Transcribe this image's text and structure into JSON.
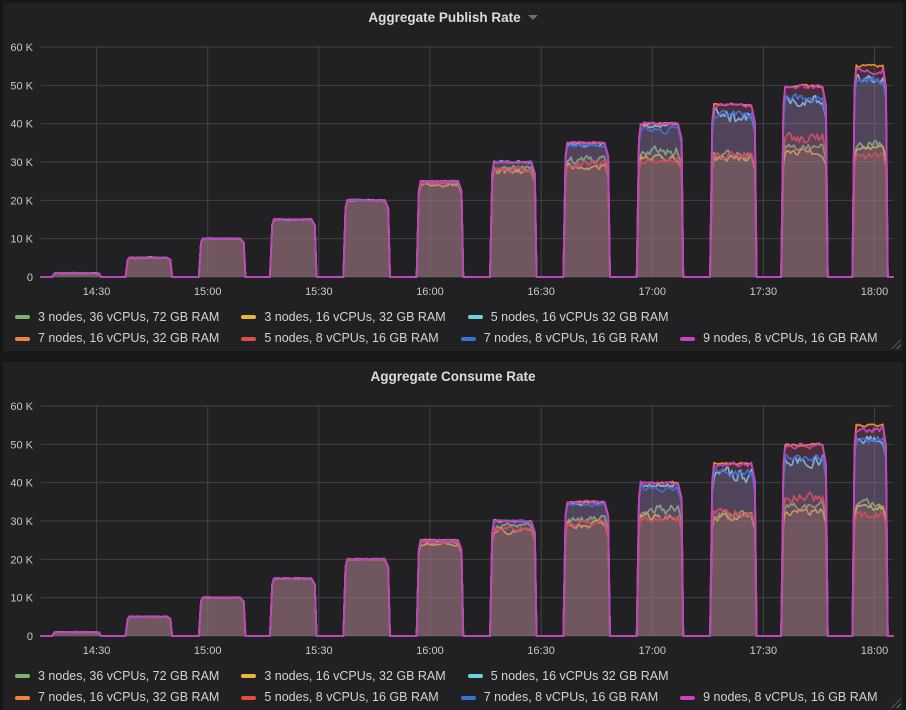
{
  "theme": {
    "page_bg": "#161719",
    "panel_bg": "#212124",
    "grid_color": "#404348",
    "tick_text_color": "#c7c9cb",
    "legend_text_color": "#d0d2d4",
    "title_text_color": "#dcdde0",
    "fill_opacity": 0.12
  },
  "chart_data": [
    {
      "type": "area",
      "title": "Aggregate Publish Rate",
      "has_menu_caret": true,
      "seed": 7,
      "unit": "messages/s (thousands)",
      "ylim_k": [
        0,
        60
      ],
      "y_ticks": [
        {
          "label": "0",
          "v": 0
        },
        {
          "label": "10 K",
          "v": 10
        },
        {
          "label": "20 K",
          "v": 20
        },
        {
          "label": "30 K",
          "v": 30
        },
        {
          "label": "40 K",
          "v": 40
        },
        {
          "label": "50 K",
          "v": 50
        },
        {
          "label": "60 K",
          "v": 60
        }
      ],
      "x_range": [
        "14:15",
        "18:05"
      ],
      "x_domain_hours": [
        14.25,
        18.0833
      ],
      "x_ticks": [
        {
          "label": "14:30",
          "t": 14.5
        },
        {
          "label": "15:00",
          "t": 15.0
        },
        {
          "label": "15:30",
          "t": 15.5
        },
        {
          "label": "16:00",
          "t": 16.0
        },
        {
          "label": "16:30",
          "t": 16.5
        },
        {
          "label": "17:00",
          "t": 17.0
        },
        {
          "label": "17:30",
          "t": 17.5
        },
        {
          "label": "18:00",
          "t": 18.0
        }
      ],
      "step_targets_k": [
        1,
        5,
        10,
        15,
        20,
        25,
        30,
        35,
        40,
        45,
        50,
        55
      ],
      "step_start_hours": [
        14.3,
        14.63,
        14.96,
        15.28,
        15.61,
        15.94,
        16.27,
        16.6,
        16.93,
        17.26,
        17.58,
        17.9
      ],
      "step_end_hours": [
        14.52,
        14.84,
        15.17,
        15.49,
        15.82,
        16.15,
        16.48,
        16.81,
        17.14,
        17.47,
        17.79,
        18.06
      ],
      "series": [
        {
          "name": "3 nodes, 36 vCPUs, 72 GB RAM",
          "color": "#7EB26D",
          "values_k": [
            1,
            5,
            10,
            15,
            20,
            24.5,
            28.5,
            30.5,
            33,
            32,
            34,
            34.5
          ],
          "noise_k": [
            0.15,
            0.2,
            0.2,
            0.2,
            0.3,
            0.5,
            1.0,
            1.5,
            2.0,
            1.5,
            1.2,
            1.5
          ]
        },
        {
          "name": "3 nodes, 16 vCPUs, 32 GB RAM",
          "color": "#EAB839",
          "values_k": [
            1,
            5,
            10,
            15,
            20,
            24,
            27.5,
            29,
            31,
            31,
            32.5,
            33.5
          ],
          "noise_k": [
            0.15,
            0.2,
            0.2,
            0.2,
            0.3,
            0.6,
            1.0,
            1.3,
            1.2,
            1.2,
            1.2,
            1.0
          ]
        },
        {
          "name": "5 nodes, 16 vCPUs 32 GB RAM",
          "color": "#6ED0E0",
          "values_k": [
            1,
            5,
            10,
            15,
            20,
            25,
            30,
            34.5,
            39.5,
            42,
            46,
            51.5
          ],
          "noise_k": [
            0.15,
            0.15,
            0.2,
            0.2,
            0.25,
            0.3,
            0.4,
            0.7,
            0.8,
            2.5,
            2.0,
            1.5
          ]
        },
        {
          "name": "7 nodes, 16 vCPUs, 32 GB RAM",
          "color": "#EF843C",
          "values_k": [
            1,
            5,
            10,
            15,
            20,
            25,
            30,
            35,
            40,
            45,
            49.8,
            55
          ],
          "noise_k": [
            0.1,
            0.15,
            0.15,
            0.2,
            0.2,
            0.25,
            0.3,
            0.3,
            0.35,
            0.4,
            0.5,
            0.5
          ]
        },
        {
          "name": "5 nodes, 8 vCPUs, 16 GB RAM",
          "color": "#E24D42",
          "values_k": [
            1,
            5,
            10,
            15,
            20,
            24.5,
            28,
            29.5,
            30.5,
            32,
            36,
            31.5
          ],
          "noise_k": [
            0.15,
            0.2,
            0.2,
            0.25,
            0.4,
            0.5,
            1.0,
            1.2,
            1.2,
            1.5,
            2.0,
            1.5
          ]
        },
        {
          "name": "7 nodes, 8 vCPUs, 16 GB RAM",
          "color": "#3274D9",
          "values_k": [
            1,
            5,
            10,
            15,
            20,
            25,
            30,
            34.2,
            38.5,
            42.5,
            46.5,
            51.5
          ],
          "noise_k": [
            0.15,
            0.15,
            0.2,
            0.2,
            0.25,
            0.3,
            0.35,
            0.6,
            1.2,
            1.5,
            1.5,
            1.5
          ]
        },
        {
          "name": "9 nodes, 8 vCPUs, 16 GB RAM",
          "color": "#C843BC",
          "values_k": [
            1,
            5,
            10,
            15,
            20,
            25,
            30,
            35,
            40,
            44.8,
            49.5,
            54
          ],
          "noise_k": [
            0.15,
            0.15,
            0.2,
            0.2,
            0.25,
            0.3,
            0.3,
            0.4,
            0.6,
            0.8,
            1.0,
            1.2
          ]
        }
      ]
    },
    {
      "type": "area",
      "title": "Aggregate Consume Rate",
      "has_menu_caret": false,
      "seed": 13,
      "unit": "messages/s (thousands)",
      "ylim_k": [
        0,
        60
      ],
      "y_ticks": [
        {
          "label": "0",
          "v": 0
        },
        {
          "label": "10 K",
          "v": 10
        },
        {
          "label": "20 K",
          "v": 20
        },
        {
          "label": "30 K",
          "v": 30
        },
        {
          "label": "40 K",
          "v": 40
        },
        {
          "label": "50 K",
          "v": 50
        },
        {
          "label": "60 K",
          "v": 60
        }
      ],
      "x_range": [
        "14:15",
        "18:05"
      ],
      "x_domain_hours": [
        14.25,
        18.0833
      ],
      "x_ticks": [
        {
          "label": "14:30",
          "t": 14.5
        },
        {
          "label": "15:00",
          "t": 15.0
        },
        {
          "label": "15:30",
          "t": 15.5
        },
        {
          "label": "16:00",
          "t": 16.0
        },
        {
          "label": "16:30",
          "t": 16.5
        },
        {
          "label": "17:00",
          "t": 17.0
        },
        {
          "label": "17:30",
          "t": 17.5
        },
        {
          "label": "18:00",
          "t": 18.0
        }
      ],
      "step_targets_k": [
        1,
        5,
        10,
        15,
        20,
        25,
        30,
        35,
        40,
        45,
        50,
        55
      ],
      "step_start_hours": [
        14.3,
        14.63,
        14.96,
        15.28,
        15.61,
        15.94,
        16.27,
        16.6,
        16.93,
        17.26,
        17.58,
        17.9
      ],
      "step_end_hours": [
        14.52,
        14.84,
        15.17,
        15.49,
        15.82,
        16.15,
        16.48,
        16.81,
        17.14,
        17.47,
        17.79,
        18.06
      ],
      "series": [
        {
          "name": "3 nodes, 36 vCPUs, 72 GB RAM",
          "color": "#7EB26D",
          "values_k": [
            1,
            5,
            10,
            15,
            20,
            24.5,
            28.5,
            30.5,
            33,
            32,
            34,
            34.5
          ],
          "noise_k": [
            0.15,
            0.2,
            0.2,
            0.2,
            0.3,
            0.5,
            1.0,
            1.5,
            2.0,
            1.5,
            1.2,
            1.5
          ]
        },
        {
          "name": "3 nodes, 16 vCPUs, 32 GB RAM",
          "color": "#EAB839",
          "values_k": [
            1,
            5,
            10,
            15,
            20,
            24,
            27.5,
            29,
            31,
            31,
            32.5,
            33.5
          ],
          "noise_k": [
            0.15,
            0.2,
            0.2,
            0.2,
            0.3,
            0.6,
            1.0,
            1.3,
            1.2,
            1.2,
            1.2,
            1.0
          ]
        },
        {
          "name": "5 nodes, 16 vCPUs 32 GB RAM",
          "color": "#6ED0E0",
          "values_k": [
            1,
            5,
            10,
            15,
            20,
            25,
            30,
            34.5,
            39.5,
            42,
            46,
            51.5
          ],
          "noise_k": [
            0.15,
            0.15,
            0.2,
            0.2,
            0.25,
            0.3,
            0.4,
            0.7,
            0.8,
            2.5,
            2.0,
            1.5
          ]
        },
        {
          "name": "7 nodes, 16 vCPUs, 32 GB RAM",
          "color": "#EF843C",
          "values_k": [
            1,
            5,
            10,
            15,
            20,
            25,
            30,
            35,
            40,
            45,
            49.8,
            55
          ],
          "noise_k": [
            0.1,
            0.15,
            0.15,
            0.2,
            0.2,
            0.25,
            0.3,
            0.3,
            0.35,
            0.4,
            0.5,
            0.5
          ]
        },
        {
          "name": "5 nodes, 8 vCPUs, 16 GB RAM",
          "color": "#E24D42",
          "values_k": [
            1,
            5,
            10,
            15,
            20,
            24.5,
            28,
            29.5,
            30.5,
            32,
            36,
            31.5
          ],
          "noise_k": [
            0.15,
            0.2,
            0.2,
            0.25,
            0.4,
            0.5,
            1.0,
            1.2,
            1.2,
            1.5,
            2.0,
            1.5
          ]
        },
        {
          "name": "7 nodes, 8 vCPUs, 16 GB RAM",
          "color": "#3274D9",
          "values_k": [
            1,
            5,
            10,
            15,
            20,
            25,
            30,
            34.2,
            38.5,
            42.5,
            46.5,
            51.5
          ],
          "noise_k": [
            0.15,
            0.15,
            0.2,
            0.2,
            0.25,
            0.3,
            0.35,
            0.6,
            1.2,
            1.5,
            1.5,
            1.5
          ]
        },
        {
          "name": "9 nodes, 8 vCPUs, 16 GB RAM",
          "color": "#C843BC",
          "values_k": [
            1,
            5,
            10,
            15,
            20,
            25,
            30,
            35,
            40,
            44.8,
            49.5,
            54
          ],
          "noise_k": [
            0.15,
            0.15,
            0.2,
            0.2,
            0.25,
            0.3,
            0.3,
            0.4,
            0.6,
            0.8,
            1.0,
            1.2
          ]
        }
      ]
    }
  ]
}
